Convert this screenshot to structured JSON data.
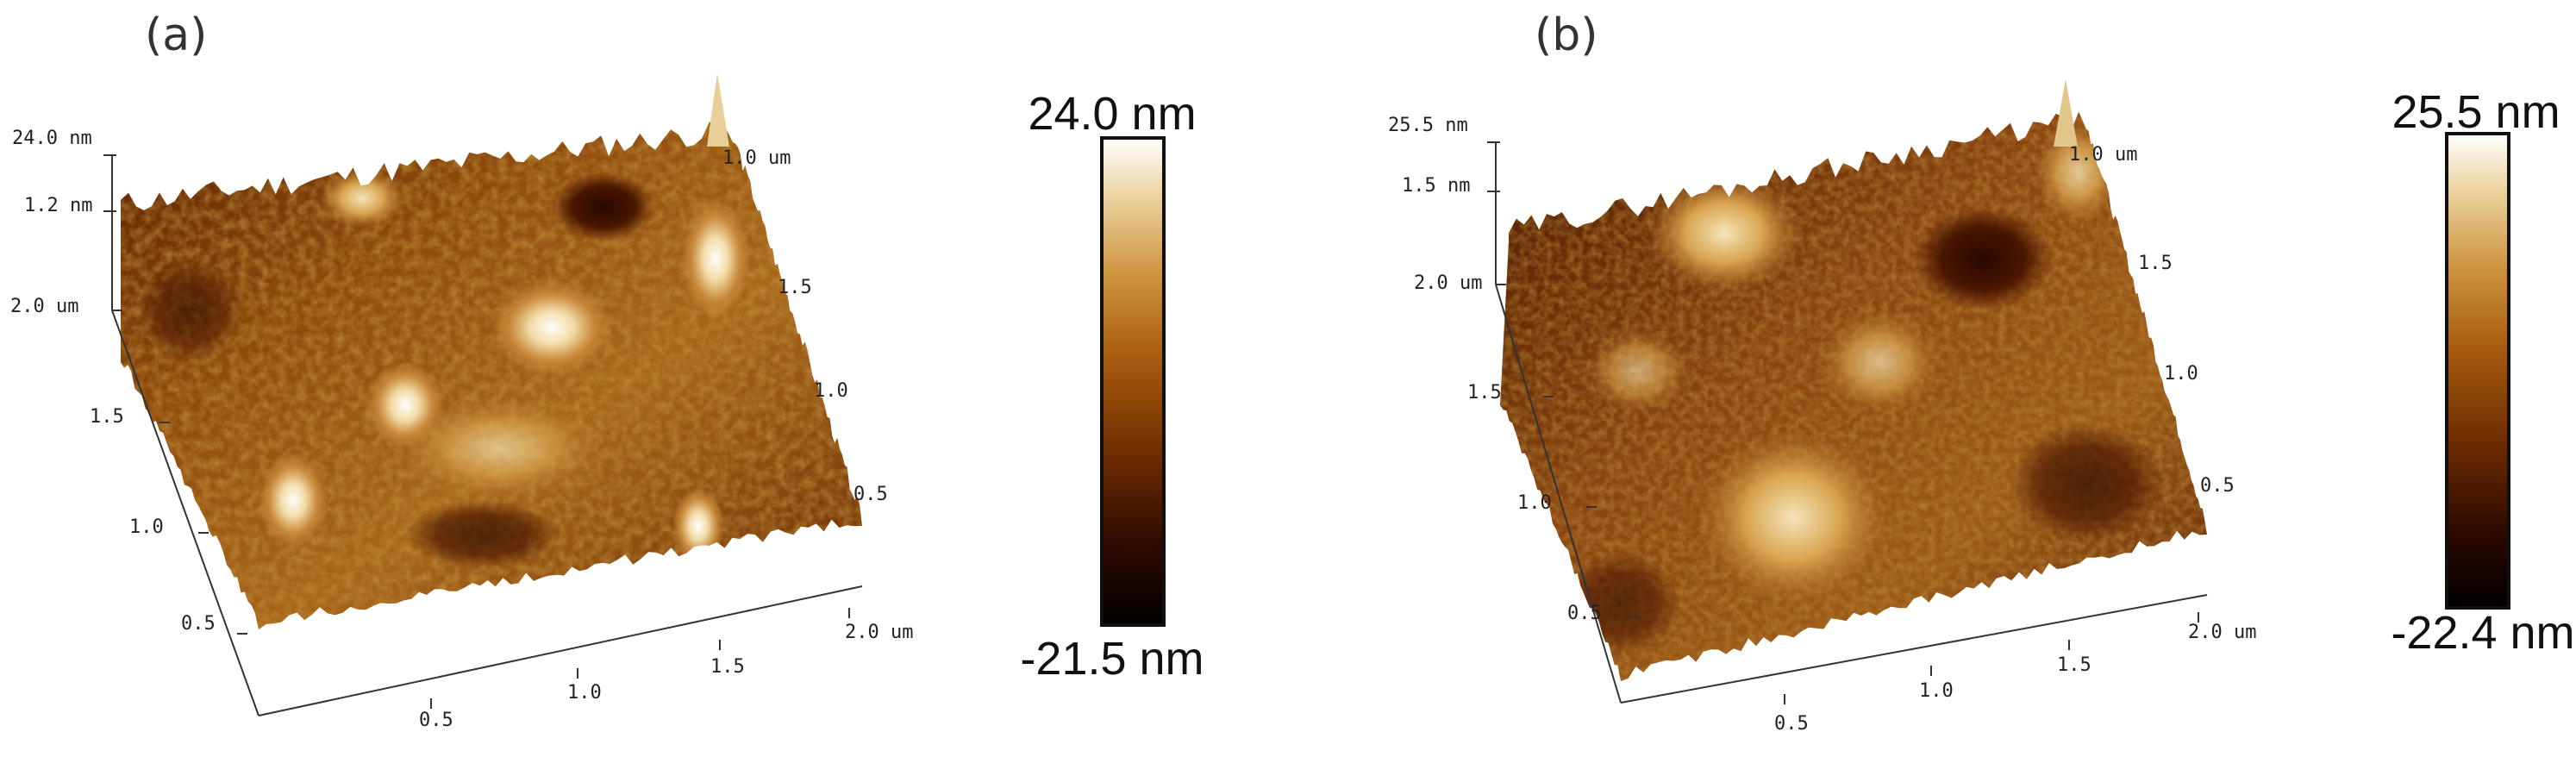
{
  "panels": [
    {
      "id": "a",
      "label": "(a)",
      "z_top_label": "24.0 nm",
      "z_tick_label": "1.2 nm",
      "left_axis_labels": [
        "2.0 um",
        "1.5",
        "1.0",
        "0.5"
      ],
      "bottom_axis_labels": [
        "0.5",
        "1.0",
        "1.5",
        "2.0 um"
      ],
      "right_axis_labels": [
        "1.0 um",
        "1.5",
        "1.0",
        "0.5"
      ],
      "colorbar": {
        "max_label": "24.0 nm",
        "min_label": "-21.5 nm",
        "max": 24.0,
        "min": -21.5
      }
    },
    {
      "id": "b",
      "label": "(b)",
      "z_top_label": "25.5 nm",
      "z_tick_label": "1.5 nm",
      "left_axis_labels": [
        "2.0 um",
        "1.5",
        "1.0",
        "0.5"
      ],
      "bottom_axis_labels": [
        "0.5",
        "1.0",
        "1.5",
        "2.0 um"
      ],
      "right_axis_labels": [
        "1.0 um",
        "1.5",
        "1.0",
        "0.5"
      ],
      "colorbar": {
        "max_label": "25.5 nm",
        "min_label": "-22.4 nm",
        "max": 25.5,
        "min": -22.4
      }
    }
  ],
  "colors": {
    "colormap": [
      "#000000",
      "#3a0e00",
      "#7a3400",
      "#b66a12",
      "#d9a24a",
      "#f0d9a8",
      "#ffffff"
    ],
    "axis": "#333333"
  }
}
